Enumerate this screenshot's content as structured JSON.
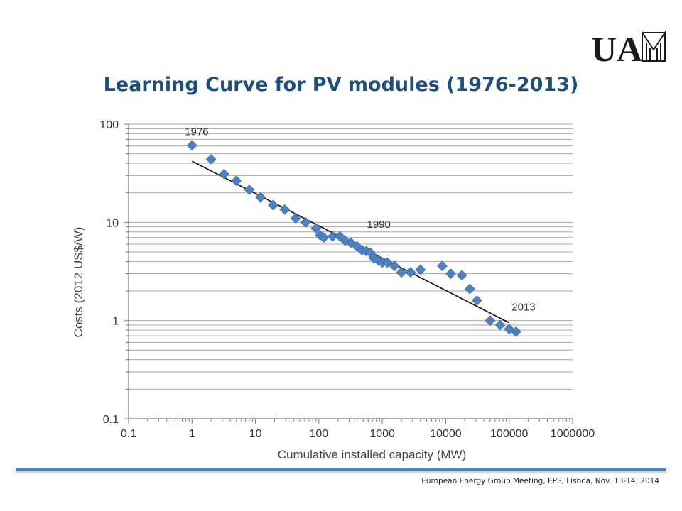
{
  "slide": {
    "title": "Learning Curve for PV modules (1976-2013)",
    "footer": "European Energy Group Meeting, EPS, Lisboa, Nov. 13-14, 2014",
    "logo_text": "UAM",
    "accent_color": "#4f81bd",
    "title_color": "#1f4e79"
  },
  "chart_data": {
    "type": "scatter",
    "xlabel": "Cumulative installed capacity (MW)",
    "ylabel": "Costs (2012 US$/W)",
    "x_scale": "log",
    "y_scale": "log",
    "xlim": [
      0.1,
      1000000
    ],
    "ylim": [
      0.1,
      100
    ],
    "x_ticks": [
      "0.1",
      "1",
      "10",
      "100",
      "1000",
      "10000",
      "100000",
      "1000000"
    ],
    "y_ticks": [
      "0.1",
      "1",
      "10",
      "100"
    ],
    "grid": "horizontal",
    "marker": "diamond",
    "marker_color": "#4f81bd",
    "series": [
      {
        "points": [
          [
            1,
            61
          ],
          [
            2,
            44
          ],
          [
            3.2,
            31
          ],
          [
            5,
            26.5
          ],
          [
            8,
            21.5
          ],
          [
            12,
            18
          ],
          [
            19,
            15
          ],
          [
            29,
            13.5
          ],
          [
            43,
            11
          ],
          [
            62,
            10
          ],
          [
            90,
            8.7
          ],
          [
            105,
            7.4
          ],
          [
            120,
            7
          ],
          [
            165,
            7.2
          ],
          [
            215,
            7.2
          ],
          [
            260,
            6.5
          ],
          [
            320,
            6.2
          ],
          [
            400,
            5.7
          ],
          [
            480,
            5.2
          ],
          [
            560,
            5.1
          ],
          [
            650,
            4.9
          ],
          [
            740,
            4.3
          ],
          [
            870,
            4.1
          ],
          [
            1000,
            3.9
          ],
          [
            1200,
            3.9
          ],
          [
            1550,
            3.6
          ],
          [
            2000,
            3.1
          ],
          [
            2800,
            3.1
          ],
          [
            4000,
            3.3
          ],
          [
            8800,
            3.6
          ],
          [
            12000,
            3
          ],
          [
            18000,
            2.9
          ],
          [
            24000,
            2.1
          ],
          [
            31000,
            1.6
          ],
          [
            50000,
            1
          ],
          [
            72000,
            0.9
          ],
          [
            100000,
            0.82
          ],
          [
            128000,
            0.77
          ]
        ]
      }
    ],
    "trendline": {
      "x": [
        1,
        100000
      ],
      "y": [
        42,
        0.95
      ]
    },
    "annotations": [
      {
        "text": "1976",
        "x": 1,
        "y": 61
      },
      {
        "text": "1990",
        "x": 215,
        "y": 7.2
      },
      {
        "text": "2013",
        "x": 128000,
        "y": 0.77
      }
    ]
  }
}
